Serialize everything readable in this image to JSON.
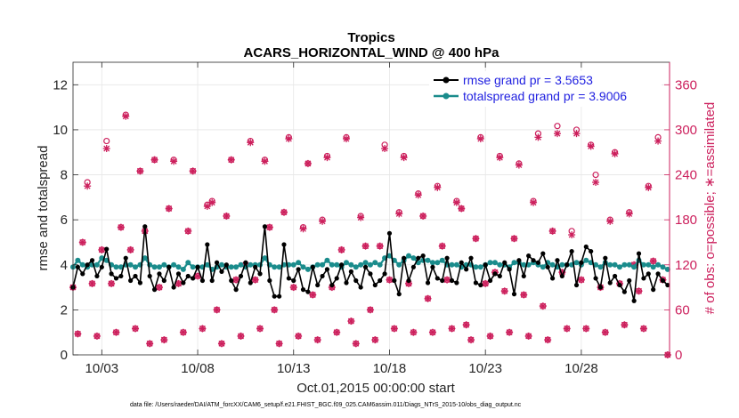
{
  "chart_data": {
    "type": "line",
    "title": "Tropics",
    "subtitle": "ACARS_HORIZONTAL_WIND @ 400 hPa",
    "xlabel": "Oct.01,2015 00:00:00 start",
    "ylabel": "rmse and totalspread",
    "y2label": "# of obs: o=possible; ∗=assimilated",
    "footnote": "data file: /Users/raeder/DAI/ATM_forcXX/CAM6_setup/f.e21.FHIST_BGC.f09_025.CAM6assim.011/Diags_NTrS_2015-10/obs_diag_output.nc",
    "xlim": [
      1.5,
      32.6
    ],
    "ylim": [
      0,
      13
    ],
    "y2lim": [
      0,
      390
    ],
    "x_tick_values": [
      3,
      8,
      13,
      18,
      23,
      28
    ],
    "x_tick_labels": [
      "10/03",
      "10/08",
      "10/13",
      "10/18",
      "10/23",
      "10/28"
    ],
    "y_ticks": [
      0,
      2,
      4,
      6,
      8,
      10,
      12
    ],
    "y2_ticks": [
      0,
      60,
      120,
      180,
      240,
      300,
      360
    ],
    "legend": [
      {
        "label": "rmse grand pr = 3.5653",
        "color": "#000000"
      },
      {
        "label": "totalspread grand pr = 3.9006",
        "color": "#1a8c8c"
      }
    ],
    "x": [
      1.5,
      1.75,
      2.0,
      2.25,
      2.5,
      2.75,
      3.0,
      3.25,
      3.5,
      3.75,
      4.0,
      4.25,
      4.5,
      4.75,
      5.0,
      5.25,
      5.5,
      5.75,
      6.0,
      6.25,
      6.5,
      6.75,
      7.0,
      7.25,
      7.5,
      7.75,
      8.0,
      8.25,
      8.5,
      8.75,
      9.0,
      9.25,
      9.5,
      9.75,
      10.0,
      10.25,
      10.5,
      10.75,
      11.0,
      11.25,
      11.5,
      11.75,
      12.0,
      12.25,
      12.5,
      12.75,
      13.0,
      13.25,
      13.5,
      13.75,
      14.0,
      14.25,
      14.5,
      14.75,
      15.0,
      15.25,
      15.5,
      15.75,
      16.0,
      16.25,
      16.5,
      16.75,
      17.0,
      17.25,
      17.5,
      17.75,
      18.0,
      18.25,
      18.5,
      18.75,
      19.0,
      19.25,
      19.5,
      19.75,
      20.0,
      20.25,
      20.5,
      20.75,
      21.0,
      21.25,
      21.5,
      21.75,
      22.0,
      22.25,
      22.5,
      22.75,
      23.0,
      23.25,
      23.5,
      23.75,
      24.0,
      24.25,
      24.5,
      24.75,
      25.0,
      25.25,
      25.5,
      25.75,
      26.0,
      26.25,
      26.5,
      26.75,
      27.0,
      27.25,
      27.5,
      27.75,
      28.0,
      28.25,
      28.5,
      28.75,
      29.0,
      29.25,
      29.5,
      29.75,
      30.0,
      30.25,
      30.5,
      30.75,
      31.0,
      31.25,
      31.5,
      31.75,
      32.0,
      32.25,
      32.5
    ],
    "series": [
      {
        "name": "rmse",
        "color": "#000000",
        "values": [
          3.0,
          3.9,
          3.6,
          4.0,
          4.2,
          3.5,
          3.9,
          4.7,
          3.6,
          3.4,
          3.5,
          4.3,
          3.3,
          3.5,
          3.2,
          5.7,
          3.5,
          2.9,
          3.6,
          3.3,
          3.9,
          3.0,
          3.6,
          3.2,
          3.5,
          3.4,
          3.9,
          3.3,
          4.9,
          3.3,
          4.1,
          3.7,
          4.0,
          3.3,
          2.9,
          3.5,
          4.1,
          3.2,
          3.9,
          3.6,
          5.7,
          3.3,
          2.6,
          2.6,
          4.9,
          3.4,
          3.3,
          3.8,
          2.9,
          2.8,
          3.9,
          3.1,
          3.5,
          3.8,
          3.1,
          3.4,
          4.0,
          3.2,
          3.7,
          3.3,
          3.0,
          3.9,
          3.6,
          3.1,
          3.3,
          3.6,
          5.4,
          3.3,
          2.7,
          4.3,
          3.3,
          3.9,
          4.3,
          4.4,
          3.2,
          3.9,
          3.4,
          3.3,
          4.3,
          3.3,
          3.2,
          4.1,
          3.8,
          4.3,
          3.2,
          3.1,
          4.0,
          3.3,
          3.6,
          3.5,
          4.1,
          3.8,
          2.7,
          4.2,
          3.5,
          4.4,
          4.2,
          4.1,
          4.5,
          3.9,
          3.4,
          4.2,
          3.5,
          4.0,
          4.6,
          3.1,
          4.1,
          4.8,
          4.6,
          3.4,
          3.0,
          4.3,
          3.2,
          3.5,
          3.1,
          2.8,
          3.3,
          2.4,
          4.5,
          3.4,
          3.6,
          2.9,
          3.6,
          3.3,
          3.1
        ],
        "marker": "filled-circle"
      },
      {
        "name": "totalspread",
        "color": "#1a8c8c",
        "values": [
          3.9,
          4.2,
          4.0,
          3.9,
          4.0,
          4.0,
          4.3,
          4.2,
          4.0,
          3.9,
          3.9,
          4.0,
          4.0,
          3.9,
          4.0,
          4.3,
          4.0,
          3.9,
          3.9,
          4.0,
          3.9,
          4.0,
          3.9,
          3.8,
          4.1,
          3.9,
          3.9,
          3.9,
          4.0,
          3.8,
          3.9,
          4.0,
          3.9,
          3.9,
          3.9,
          4.0,
          3.9,
          4.0,
          4.0,
          4.0,
          4.3,
          4.0,
          3.9,
          3.9,
          4.0,
          4.0,
          4.0,
          4.1,
          3.9,
          3.8,
          3.9,
          4.0,
          4.0,
          4.2,
          4.0,
          4.0,
          3.9,
          4.1,
          4.0,
          3.9,
          4.0,
          4.1,
          4.0,
          4.1,
          4.0,
          4.3,
          4.4,
          4.2,
          4.0,
          4.2,
          4.4,
          4.3,
          4.1,
          4.2,
          4.2,
          4.1,
          4.1,
          4.2,
          4.0,
          4.0,
          4.0,
          3.9,
          4.0,
          4.0,
          3.9,
          3.9,
          4.0,
          4.1,
          4.1,
          4.0,
          4.0,
          3.9,
          4.1,
          4.1,
          4.0,
          4.0,
          4.1,
          4.0,
          3.9,
          4.1,
          4.0,
          3.9,
          4.0,
          4.0,
          4.0,
          4.1,
          4.0,
          4.2,
          4.1,
          4.0,
          3.9,
          4.1,
          4.0,
          4.0,
          3.9,
          4.0,
          4.0,
          3.9,
          4.2,
          4.0,
          4.0,
          3.9,
          4.0,
          3.9,
          3.8
        ],
        "marker": "filled-circle"
      },
      {
        "name": "obs_possible",
        "color": "#cc1f5c",
        "axis": "right",
        "marker": "open-circle",
        "values": [
          90,
          28,
          150,
          230,
          95,
          25,
          140,
          285,
          95,
          30,
          170,
          320,
          140,
          35,
          245,
          165,
          15,
          260,
          90,
          20,
          195,
          260,
          95,
          30,
          165,
          245,
          105,
          35,
          200,
          205,
          60,
          15,
          185,
          260,
          100,
          25,
          120,
          285,
          100,
          35,
          260,
          170,
          60,
          15,
          190,
          290,
          90,
          25,
          170,
          255,
          80,
          20,
          180,
          265,
          90,
          30,
          140,
          290,
          45,
          15,
          185,
          145,
          60,
          20,
          145,
          280,
          100,
          35,
          190,
          265,
          95,
          30,
          215,
          185,
          75,
          30,
          225,
          145,
          100,
          35,
          205,
          195,
          40,
          20,
          155,
          290,
          95,
          25,
          110,
          265,
          85,
          30,
          155,
          255,
          80,
          25,
          205,
          295,
          65,
          20,
          165,
          305,
          110,
          35,
          165,
          300,
          100,
          35,
          280,
          240,
          90,
          30,
          180,
          270,
          95,
          40,
          190,
          120,
          85,
          35,
          225,
          125,
          290,
          100,
          0
        ],
        "y_offset_note": "possible markers drawn slightly above assimilated markers where they differ"
      },
      {
        "name": "obs_assimilated",
        "color": "#cc1f5c",
        "axis": "right",
        "marker": "asterisk",
        "values": [
          90,
          28,
          150,
          225,
          95,
          25,
          140,
          275,
          95,
          30,
          170,
          318,
          140,
          35,
          245,
          165,
          15,
          260,
          90,
          20,
          195,
          258,
          95,
          30,
          165,
          245,
          105,
          35,
          198,
          203,
          60,
          15,
          185,
          260,
          100,
          25,
          120,
          283,
          100,
          35,
          258,
          170,
          60,
          15,
          190,
          288,
          90,
          25,
          168,
          255,
          80,
          20,
          178,
          263,
          90,
          30,
          140,
          288,
          45,
          15,
          183,
          145,
          60,
          20,
          145,
          275,
          100,
          35,
          188,
          263,
          95,
          30,
          213,
          185,
          75,
          30,
          223,
          145,
          100,
          35,
          203,
          195,
          40,
          20,
          155,
          288,
          95,
          25,
          110,
          263,
          85,
          30,
          155,
          253,
          80,
          25,
          203,
          290,
          65,
          20,
          165,
          295,
          110,
          35,
          160,
          295,
          100,
          35,
          278,
          230,
          90,
          30,
          178,
          268,
          95,
          40,
          188,
          120,
          85,
          35,
          223,
          125,
          285,
          100,
          0
        ]
      }
    ]
  }
}
